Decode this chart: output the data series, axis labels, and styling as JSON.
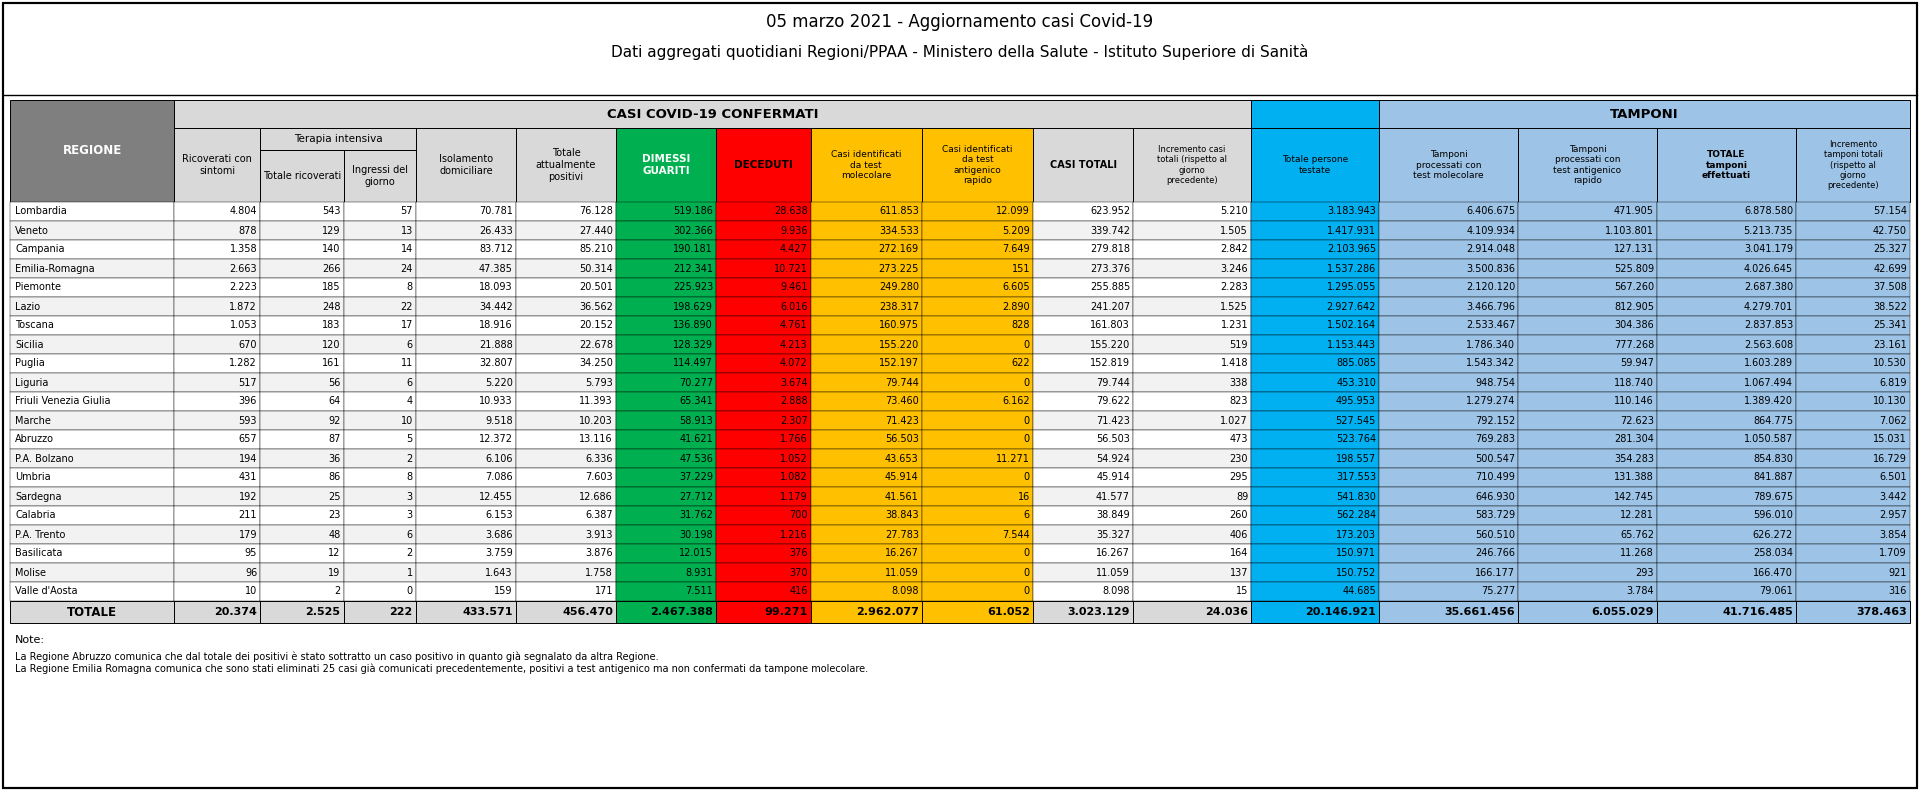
{
  "title1": "05 marzo 2021 - Aggiornamento casi Covid-19",
  "title2": "Dati aggregati quotidiani Regioni/PPAA - Ministero della Salute - Istituto Superiore di Sanità",
  "note_header": "Note:",
  "note1": "La Regione Abruzzo comunica che dal totale dei positivi è stato sottratto un caso positivo in quanto già segnalato da altra Regione.",
  "note2": "La Regione Emilia Romagna comunica che sono stati eliminati 25 casi già comunicati precedentemente, positivi a test antigenico ma non confermati da tampone molecolare.",
  "header_casi": "CASI COVID-19 CONFERMATI",
  "header_tamponi": "TAMPONI",
  "subheader_terapia": "Terapia intensiva",
  "regions": [
    "Lombardia",
    "Veneto",
    "Campania",
    "Emilia-Romagna",
    "Piemonte",
    "Lazio",
    "Toscana",
    "Sicilia",
    "Puglia",
    "Liguria",
    "Friuli Venezia Giulia",
    "Marche",
    "Abruzzo",
    "P.A. Bolzano",
    "Umbria",
    "Sardegna",
    "Calabria",
    "P.A. Trento",
    "Basilicata",
    "Molise",
    "Valle d'Aosta"
  ],
  "data": [
    [
      4804,
      543,
      57,
      70781,
      76128,
      519186,
      28638,
      611853,
      12099,
      623952,
      5210,
      3183943,
      6406675,
      471905,
      6878580,
      57154
    ],
    [
      878,
      129,
      13,
      26433,
      27440,
      302366,
      9936,
      334533,
      5209,
      339742,
      1505,
      1417931,
      4109934,
      1103801,
      5213735,
      42750
    ],
    [
      1358,
      140,
      14,
      83712,
      85210,
      190181,
      4427,
      272169,
      7649,
      279818,
      2842,
      2103965,
      2914048,
      127131,
      3041179,
      25327
    ],
    [
      2663,
      266,
      24,
      47385,
      50314,
      212341,
      10721,
      273225,
      151,
      273376,
      3246,
      1537286,
      3500836,
      525809,
      4026645,
      42699
    ],
    [
      2223,
      185,
      8,
      18093,
      20501,
      225923,
      9461,
      249280,
      6605,
      255885,
      2283,
      1295055,
      2120120,
      567260,
      2687380,
      37508
    ],
    [
      1872,
      248,
      22,
      34442,
      36562,
      198629,
      6016,
      238317,
      2890,
      241207,
      1525,
      2927642,
      3466796,
      812905,
      4279701,
      38522
    ],
    [
      1053,
      183,
      17,
      18916,
      20152,
      136890,
      4761,
      160975,
      828,
      161803,
      1231,
      1502164,
      2533467,
      304386,
      2837853,
      25341
    ],
    [
      670,
      120,
      6,
      21888,
      22678,
      128329,
      4213,
      155220,
      0,
      155220,
      519,
      1153443,
      1786340,
      777268,
      2563608,
      23161
    ],
    [
      1282,
      161,
      11,
      32807,
      34250,
      114497,
      4072,
      152197,
      622,
      152819,
      1418,
      885085,
      1543342,
      59947,
      1603289,
      10530
    ],
    [
      517,
      56,
      6,
      5220,
      5793,
      70277,
      3674,
      79744,
      0,
      79744,
      338,
      453310,
      948754,
      118740,
      1067494,
      6819
    ],
    [
      396,
      64,
      4,
      10933,
      11393,
      65341,
      2888,
      73460,
      6162,
      79622,
      823,
      495953,
      1279274,
      110146,
      1389420,
      10130
    ],
    [
      593,
      92,
      10,
      9518,
      10203,
      58913,
      2307,
      71423,
      0,
      71423,
      1027,
      527545,
      792152,
      72623,
      864775,
      7062
    ],
    [
      657,
      87,
      5,
      12372,
      13116,
      41621,
      1766,
      56503,
      0,
      56503,
      473,
      523764,
      769283,
      281304,
      1050587,
      15031
    ],
    [
      194,
      36,
      2,
      6106,
      6336,
      47536,
      1052,
      43653,
      11271,
      54924,
      230,
      198557,
      500547,
      354283,
      854830,
      16729
    ],
    [
      431,
      86,
      8,
      7086,
      7603,
      37229,
      1082,
      45914,
      0,
      45914,
      295,
      317553,
      710499,
      131388,
      841887,
      6501
    ],
    [
      192,
      25,
      3,
      12455,
      12686,
      27712,
      1179,
      41561,
      16,
      41577,
      89,
      541830,
      646930,
      142745,
      789675,
      3442
    ],
    [
      211,
      23,
      3,
      6153,
      6387,
      31762,
      700,
      38843,
      6,
      38849,
      260,
      562284,
      583729,
      12281,
      596010,
      2957
    ],
    [
      179,
      48,
      6,
      3686,
      3913,
      30198,
      1216,
      27783,
      7544,
      35327,
      406,
      173203,
      560510,
      65762,
      626272,
      3854
    ],
    [
      95,
      12,
      2,
      3759,
      3876,
      12015,
      376,
      16267,
      0,
      16267,
      164,
      150971,
      246766,
      11268,
      258034,
      1709
    ],
    [
      96,
      19,
      1,
      1643,
      1758,
      8931,
      370,
      11059,
      0,
      11059,
      137,
      150752,
      166177,
      293,
      166470,
      921
    ],
    [
      10,
      2,
      0,
      159,
      171,
      7511,
      416,
      8098,
      0,
      8098,
      15,
      44685,
      75277,
      3784,
      79061,
      316
    ]
  ],
  "totals": [
    20374,
    2525,
    222,
    433571,
    456470,
    2467388,
    99271,
    2962077,
    61052,
    3023129,
    24036,
    20146921,
    35661456,
    6055029,
    41716485,
    378463
  ],
  "bg_color": "#ffffff",
  "header_bg_light": "#d9d9d9",
  "header_bg_dark": "#7f7f7f",
  "col_green_bg": "#00b050",
  "col_red_bg": "#ff0000",
  "col_yellow_bg": "#ffc000",
  "col_lightblue_bg": "#00b0f0",
  "col_lightblue2_bg": "#9dc3e6",
  "row_odd": "#ffffff",
  "row_even": "#f2f2f2",
  "total_row_bg": "#d9d9d9"
}
